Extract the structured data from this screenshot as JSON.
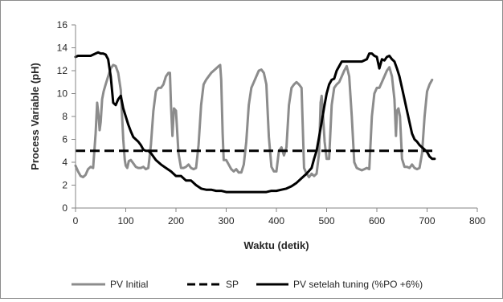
{
  "chart_data": {
    "type": "line",
    "title": "",
    "xlabel": "Waktu (detik)",
    "ylabel": "Process Variable (pH)",
    "xlim": [
      0,
      800
    ],
    "ylim": [
      0,
      16
    ],
    "x_ticks": [
      "0",
      "100",
      "200",
      "300",
      "400",
      "500",
      "600",
      "700",
      "800"
    ],
    "y_ticks": [
      "0",
      "2",
      "4",
      "6",
      "8",
      "10",
      "12",
      "14",
      "16"
    ],
    "grid": false,
    "legend_position": "bottom",
    "series": [
      {
        "name": "PV Initial",
        "color": "#8c8c8c",
        "style": "solid",
        "x": [
          0,
          5,
          10,
          15,
          20,
          25,
          30,
          35,
          40,
          43,
          46,
          48,
          50,
          53,
          56,
          60,
          65,
          70,
          75,
          80,
          85,
          90,
          95,
          98,
          100,
          103,
          106,
          110,
          115,
          120,
          125,
          130,
          135,
          140,
          145,
          150,
          155,
          160,
          165,
          170,
          175,
          180,
          185,
          188,
          190,
          193,
          196,
          200,
          205,
          210,
          215,
          220,
          225,
          230,
          235,
          240,
          245,
          250,
          255,
          260,
          265,
          270,
          275,
          280,
          285,
          288,
          290,
          293,
          295,
          300,
          305,
          310,
          315,
          320,
          325,
          330,
          335,
          340,
          345,
          350,
          355,
          360,
          365,
          370,
          375,
          380,
          385,
          390,
          395,
          400,
          405,
          410,
          415,
          420,
          425,
          430,
          435,
          440,
          445,
          450,
          455,
          460,
          465,
          470,
          475,
          480,
          485,
          488,
          490,
          493,
          496,
          500,
          505,
          510,
          515,
          520,
          525,
          530,
          535,
          540,
          545,
          550,
          555,
          560,
          565,
          570,
          575,
          580,
          585,
          590,
          595,
          600,
          605,
          610,
          615,
          620,
          625,
          630,
          635,
          638,
          640,
          643,
          646,
          650,
          655,
          660,
          665,
          670,
          675,
          680,
          685,
          690,
          695,
          700,
          705,
          710
        ],
        "values": [
          3.7,
          3.2,
          2.8,
          2.7,
          2.9,
          3.4,
          3.6,
          3.5,
          6.5,
          9.2,
          8.0,
          6.8,
          7.5,
          9.5,
          10.2,
          10.8,
          11.5,
          12.2,
          12.5,
          12.4,
          11.8,
          10.3,
          6.0,
          4.2,
          3.7,
          3.5,
          4.1,
          4.2,
          3.9,
          3.6,
          3.5,
          3.5,
          3.6,
          3.4,
          3.5,
          5.5,
          8.5,
          10.2,
          10.5,
          10.5,
          10.8,
          11.5,
          11.8,
          11.8,
          9.0,
          6.3,
          8.7,
          8.5,
          4.8,
          3.5,
          3.5,
          3.6,
          3.8,
          3.5,
          3.4,
          3.5,
          5.5,
          9.0,
          10.8,
          11.2,
          11.5,
          11.8,
          12.0,
          12.2,
          12.4,
          12.5,
          11.2,
          6.5,
          4.2,
          4.2,
          3.8,
          3.4,
          3.2,
          3.4,
          3.1,
          3.1,
          3.8,
          5.8,
          9.0,
          10.5,
          11.0,
          11.5,
          12.0,
          12.1,
          11.8,
          10.8,
          6.2,
          3.6,
          3.2,
          3.2,
          5.0,
          5.3,
          4.6,
          5.3,
          9.0,
          10.5,
          10.8,
          11.0,
          10.8,
          10.5,
          3.5,
          3.0,
          2.7,
          3.0,
          2.8,
          3.0,
          4.8,
          9.2,
          9.8,
          8.0,
          5.8,
          4.3,
          4.3,
          9.0,
          10.5,
          10.8,
          11.0,
          11.5,
          12.0,
          12.4,
          11.5,
          8.0,
          4.0,
          3.5,
          3.4,
          3.3,
          3.4,
          3.5,
          3.4,
          8.0,
          10.0,
          10.5,
          10.5,
          11.0,
          11.5,
          12.0,
          12.3,
          11.5,
          9.5,
          6.3,
          8.5,
          8.7,
          8.0,
          4.3,
          3.6,
          3.6,
          3.5,
          3.8,
          3.5,
          3.4,
          3.5,
          4.8,
          8.0,
          10.2,
          10.8,
          11.2
        ]
      },
      {
        "name": "SP",
        "color": "#000000",
        "style": "dashed",
        "x": [
          0,
          720
        ],
        "values": [
          5,
          5
        ]
      },
      {
        "name": "PV setelah tuning (%PO +6%)",
        "color": "#000000",
        "style": "solid",
        "x": [
          0,
          5,
          10,
          20,
          30,
          40,
          45,
          50,
          55,
          60,
          65,
          70,
          75,
          80,
          85,
          90,
          95,
          100,
          105,
          110,
          115,
          120,
          125,
          130,
          135,
          140,
          145,
          150,
          160,
          170,
          180,
          190,
          200,
          210,
          220,
          230,
          240,
          250,
          260,
          270,
          280,
          290,
          300,
          310,
          320,
          330,
          340,
          350,
          360,
          370,
          380,
          390,
          400,
          410,
          420,
          430,
          440,
          450,
          460,
          470,
          475,
          480,
          485,
          490,
          495,
          500,
          505,
          510,
          515,
          520,
          530,
          540,
          550,
          560,
          570,
          580,
          585,
          590,
          595,
          600,
          605,
          610,
          615,
          620,
          625,
          630,
          635,
          640,
          645,
          650,
          655,
          660,
          665,
          670,
          675,
          680,
          685,
          690,
          695,
          700,
          705,
          710,
          715
        ],
        "values": [
          13.2,
          13.3,
          13.3,
          13.3,
          13.3,
          13.5,
          13.6,
          13.5,
          13.5,
          13.4,
          13.0,
          11.5,
          9.2,
          9.0,
          9.5,
          9.8,
          8.7,
          8.0,
          7.3,
          6.7,
          6.2,
          6.0,
          5.8,
          5.5,
          5.1,
          5.0,
          5.0,
          4.8,
          4.2,
          3.8,
          3.5,
          3.2,
          2.8,
          2.8,
          2.4,
          2.4,
          2.0,
          1.7,
          1.6,
          1.6,
          1.5,
          1.5,
          1.4,
          1.4,
          1.4,
          1.4,
          1.4,
          1.4,
          1.4,
          1.4,
          1.4,
          1.5,
          1.5,
          1.6,
          1.7,
          1.9,
          2.2,
          2.6,
          3.0,
          3.5,
          4.3,
          5.0,
          6.2,
          7.5,
          8.8,
          10.0,
          10.8,
          11.2,
          11.3,
          12.0,
          12.8,
          12.8,
          12.8,
          12.8,
          12.8,
          13.0,
          13.5,
          13.5,
          13.3,
          13.2,
          12.2,
          13.0,
          12.9,
          13.2,
          13.3,
          13.0,
          12.8,
          12.2,
          11.5,
          10.5,
          9.5,
          8.5,
          7.5,
          6.5,
          6.0,
          5.8,
          5.5,
          5.3,
          5.1,
          4.9,
          4.5,
          4.3,
          4.3
        ]
      }
    ]
  }
}
